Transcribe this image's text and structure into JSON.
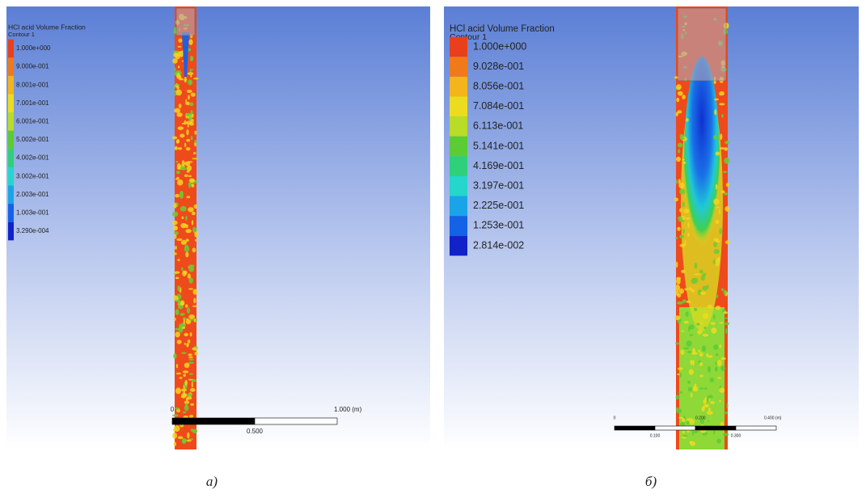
{
  "panels": [
    {
      "legend": {
        "title": "HCl acid Volume Fraction",
        "subtitle": "Contour 1",
        "labels": [
          "1.000e+000",
          "9.000e-001",
          "8.001e-001",
          "7.001e-001",
          "6.001e-001",
          "5.002e-001",
          "4.002e-001",
          "3.002e-001",
          "2.003e-001",
          "1.003e-001",
          "3.290e-004"
        ]
      },
      "scale": {
        "top_labels": [
          "0",
          "1.000 (m)"
        ],
        "bottom_labels": [
          "0.500"
        ]
      },
      "caption": "а)"
    },
    {
      "legend": {
        "title": "HCl acid Volume Fraction",
        "subtitle": "Contour 1",
        "labels": [
          "1.000e+000",
          "9.028e-001",
          "8.056e-001",
          "7.084e-001",
          "6.113e-001",
          "5.141e-001",
          "4.169e-001",
          "3.197e-001",
          "2.225e-001",
          "1.253e-001",
          "2.814e-002"
        ]
      },
      "scale": {
        "top_labels": [
          "0",
          "0.200",
          "0.400 (m)"
        ],
        "bottom_labels": [
          "0.100",
          "0.300"
        ]
      },
      "caption": "б)"
    }
  ]
}
